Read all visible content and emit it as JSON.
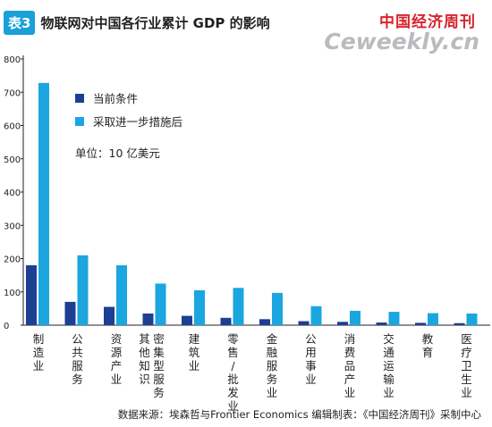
{
  "header": {
    "tag": "表3",
    "title": "物联网对中国各行业累计 GDP 的影响"
  },
  "logo": {
    "cn": "中国经济周刊",
    "en": "Ceweekly.cn"
  },
  "source": "数据来源：埃森哲与Frontier Economics   编辑制表：《中国经济周刊》采制中心",
  "chart_data": {
    "type": "bar",
    "categories": [
      "制造业",
      "公共服务",
      "资源产业",
      "其他知识密集型服务",
      "建筑业",
      "零售批发业",
      "金融服务业",
      "公用事业",
      "消费品产业",
      "交通运输业",
      "教育",
      "医疗卫生业"
    ],
    "category_lines": [
      [
        "制造业"
      ],
      [
        "公共服务"
      ],
      [
        "资源产业"
      ],
      [
        "其他知识",
        "密集型服务"
      ],
      [
        "建筑业"
      ],
      [
        "零售/批发业"
      ],
      [
        "金融服务业"
      ],
      [
        "公用事业"
      ],
      [
        "消费品产业"
      ],
      [
        "交通运输业"
      ],
      [
        "教育"
      ],
      [
        "医疗卫生业"
      ]
    ],
    "series": [
      {
        "name": "当前条件",
        "color": "#1c3f94",
        "values": [
          180,
          70,
          55,
          35,
          28,
          22,
          18,
          12,
          10,
          8,
          7,
          6
        ]
      },
      {
        "name": "采取进一步措施后",
        "color": "#1ba6e0",
        "values": [
          728,
          210,
          180,
          125,
          105,
          112,
          97,
          57,
          43,
          40,
          36,
          35
        ]
      }
    ],
    "unit_label": "单位：10 亿美元",
    "yticks": [
      0,
      100,
      200,
      300,
      400,
      500,
      600,
      700,
      800
    ],
    "ylim": [
      0,
      800
    ],
    "grid": false,
    "legend_position": "upper-middle"
  }
}
